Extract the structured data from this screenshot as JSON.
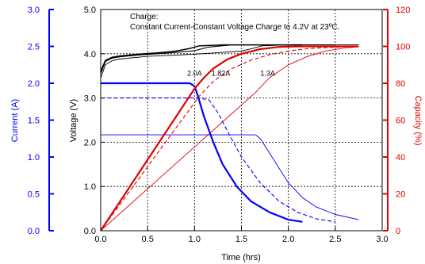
{
  "chart_data": {
    "type": "line",
    "annotation": {
      "title": "Charge:",
      "subtitle": "Constant Current-Constant Voltage Charge to 4.2V at 23ºC."
    },
    "xlabel": "Time (hrs)",
    "xlim": [
      0.0,
      3.0
    ],
    "xticks": [
      "0.0",
      "0.5",
      "1.0",
      "1.5",
      "2.0",
      "2.5",
      "3.0"
    ],
    "axes": {
      "current": {
        "label": "Current (A)",
        "lim": [
          0.0,
          3.0
        ],
        "ticks": [
          "0.0",
          "0.5",
          "1.0",
          "1.5",
          "2.0",
          "2.5",
          "3.0"
        ],
        "color": "#0000ff"
      },
      "voltage": {
        "label": "Voltage (V)",
        "lim": [
          0.0,
          5.0
        ],
        "ticks": [
          "0.0",
          "1.0",
          "2.0",
          "3.0",
          "4.0",
          "5.0"
        ],
        "color": "#000000"
      },
      "capacity": {
        "label": "Capacity (%)",
        "lim": [
          0,
          120
        ],
        "ticks": [
          "0",
          "20",
          "40",
          "60",
          "80",
          "100",
          "120"
        ],
        "color": "#e00000"
      }
    },
    "grid": true,
    "rate_labels": [
      {
        "text": "2.0A",
        "x": 1.0,
        "capacity": 84
      },
      {
        "text": "1.82A",
        "x": 1.28,
        "capacity": 84
      },
      {
        "text": "1.3A",
        "x": 1.78,
        "capacity": 84
      }
    ],
    "series": [
      {
        "label": "2.0A",
        "quantity": "voltage",
        "color": "#000000",
        "dash": "solid",
        "width": 1.5,
        "x": [
          0.0,
          0.05,
          0.12,
          0.2,
          0.4,
          0.6,
          0.8,
          0.95,
          1.05,
          1.3,
          1.6,
          2.0,
          2.15
        ],
        "values": [
          3.6,
          3.85,
          3.92,
          3.95,
          3.99,
          4.02,
          4.06,
          4.12,
          4.18,
          4.2,
          4.2,
          4.2,
          4.2
        ]
      },
      {
        "label": "1.82A",
        "quantity": "voltage",
        "color": "#000000",
        "dash": "solid",
        "width": 1.1,
        "x": [
          0.0,
          0.05,
          0.12,
          0.2,
          0.4,
          0.6,
          0.8,
          1.0,
          1.15,
          1.4,
          2.0,
          2.5
        ],
        "values": [
          3.55,
          3.82,
          3.9,
          3.93,
          3.97,
          4.0,
          4.03,
          4.07,
          4.15,
          4.2,
          4.2,
          4.2
        ]
      },
      {
        "label": "1.3A",
        "quantity": "voltage",
        "color": "#000000",
        "dash": "solid",
        "width": 0.9,
        "x": [
          0.0,
          0.05,
          0.12,
          0.2,
          0.5,
          1.0,
          1.5,
          1.62,
          1.72,
          2.0,
          2.75
        ],
        "values": [
          3.45,
          3.75,
          3.84,
          3.88,
          3.94,
          3.99,
          4.06,
          4.12,
          4.18,
          4.2,
          4.2
        ]
      },
      {
        "label": "2.0A",
        "quantity": "current",
        "color": "#0000ff",
        "dash": "solid",
        "width": 2.2,
        "x": [
          0.0,
          0.95,
          1.0,
          1.03,
          1.1,
          1.2,
          1.3,
          1.45,
          1.6,
          1.8,
          2.0,
          2.15
        ],
        "values": [
          2.0,
          2.0,
          1.96,
          1.85,
          1.55,
          1.2,
          0.9,
          0.6,
          0.4,
          0.25,
          0.15,
          0.12
        ]
      },
      {
        "label": "1.82A",
        "quantity": "current",
        "color": "#0000ff",
        "dash": "dashed",
        "width": 1.1,
        "x": [
          0.0,
          1.0,
          1.15,
          1.25,
          1.35,
          1.5,
          1.7,
          1.9,
          2.1,
          2.3,
          2.5
        ],
        "values": [
          1.8,
          1.8,
          1.78,
          1.6,
          1.35,
          1.0,
          0.65,
          0.4,
          0.25,
          0.16,
          0.12
        ]
      },
      {
        "label": "1.3A",
        "quantity": "current",
        "color": "#0000ff",
        "dash": "solid",
        "width": 0.9,
        "x": [
          0.0,
          1.65,
          1.7,
          1.8,
          1.9,
          2.0,
          2.15,
          2.3,
          2.5,
          2.75
        ],
        "values": [
          1.3,
          1.3,
          1.25,
          1.05,
          0.85,
          0.65,
          0.45,
          0.32,
          0.22,
          0.15
        ]
      },
      {
        "label": "2.0A",
        "quantity": "capacity",
        "color": "#e00000",
        "dash": "solid",
        "width": 2.2,
        "x": [
          0.0,
          1.0,
          1.1,
          1.2,
          1.35,
          1.5,
          1.7,
          1.9,
          2.1,
          2.3,
          2.5,
          2.75
        ],
        "values": [
          0,
          77,
          83,
          88,
          93,
          96,
          98.5,
          99.7,
          100,
          100,
          100,
          100
        ]
      },
      {
        "label": "1.82A",
        "quantity": "capacity",
        "color": "#e00000",
        "dash": "dashed",
        "width": 1.1,
        "x": [
          0.0,
          1.05,
          1.2,
          1.4,
          1.6,
          1.8,
          2.0,
          2.2,
          2.4,
          2.6,
          2.75
        ],
        "values": [
          0,
          73,
          81,
          88,
          92.5,
          95.5,
          97.5,
          98.7,
          99.4,
          99.8,
          100
        ]
      },
      {
        "label": "1.3A",
        "quantity": "capacity",
        "color": "#e00000",
        "dash": "solid",
        "width": 0.9,
        "x": [
          0.0,
          1.65,
          1.8,
          2.0,
          2.2,
          2.4,
          2.6,
          2.75
        ],
        "values": [
          0,
          75,
          83,
          90,
          94.5,
          97.5,
          99.2,
          99.8
        ]
      }
    ]
  }
}
